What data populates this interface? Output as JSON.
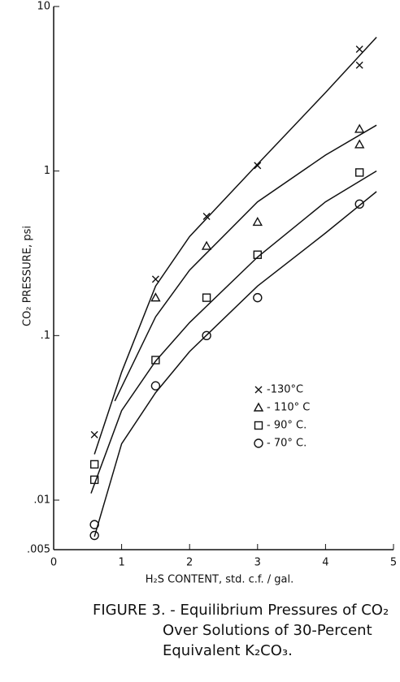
{
  "chart_data": {
    "type": "scatter",
    "x_label": "H₂S CONTENT, std. c.f. / gal.",
    "y_label": "CO₂ PRESSURE, psi",
    "caption": [
      "FIGURE 3. - Equilibrium Pressures of CO₂",
      "Over Solutions of 30-Percent",
      "Equivalent K₂CO₃."
    ],
    "xlim": [
      0,
      5
    ],
    "xticks": [
      0,
      1,
      2,
      3,
      4,
      5
    ],
    "ylim": [
      0.005,
      10
    ],
    "ylog": true,
    "yticks": [
      {
        "value": 0.005,
        "label": ".005"
      },
      {
        "value": 0.01,
        "label": ".01"
      },
      {
        "value": 0.1,
        "label": ".1"
      },
      1,
      10
    ],
    "legend": "center-right",
    "series": [
      {
        "name": "-130°C",
        "marker": "x",
        "color": "#111",
        "x": [
          0.6,
          1.5,
          2.25,
          3.0,
          4.5,
          4.5
        ],
        "values": [
          0.025,
          0.22,
          0.53,
          1.08,
          5.5,
          4.4
        ],
        "fit_x": [
          0.6,
          1,
          1.5,
          2,
          3,
          4,
          4.75
        ],
        "fit_values": [
          0.019,
          0.06,
          0.2,
          0.4,
          1.1,
          3,
          6.5
        ]
      },
      {
        "name": "- 110° C",
        "marker": "triangle",
        "color": "#111",
        "x": [
          1.5,
          2.25,
          3.0,
          4.5,
          4.5
        ],
        "values": [
          0.17,
          0.35,
          0.49,
          1.8,
          1.45
        ],
        "fit_x": [
          0.9,
          1.5,
          2,
          3,
          4,
          4.75
        ],
        "fit_values": [
          0.04,
          0.13,
          0.25,
          0.65,
          1.25,
          1.9
        ]
      },
      {
        "name": "- 90° C.",
        "marker": "square",
        "color": "#111",
        "x": [
          0.6,
          0.6,
          1.5,
          2.25,
          3.0,
          4.5
        ],
        "values": [
          0.0165,
          0.0133,
          0.071,
          0.17,
          0.31,
          0.98
        ],
        "fit_x": [
          0.55,
          1,
          1.5,
          2,
          3,
          4,
          4.75
        ],
        "fit_values": [
          0.011,
          0.035,
          0.07,
          0.12,
          0.3,
          0.65,
          1.0
        ]
      },
      {
        "name": "- 70° C.",
        "marker": "circle",
        "color": "#111",
        "x": [
          0.6,
          0.6,
          1.5,
          2.25,
          3.0,
          4.5
        ],
        "values": [
          0.0071,
          0.0061,
          0.0495,
          0.1,
          0.17,
          0.63
        ],
        "fit_x": [
          0.6,
          1,
          1.5,
          2,
          3,
          4,
          4.75
        ],
        "fit_values": [
          0.006,
          0.022,
          0.045,
          0.08,
          0.2,
          0.42,
          0.75
        ]
      }
    ]
  }
}
